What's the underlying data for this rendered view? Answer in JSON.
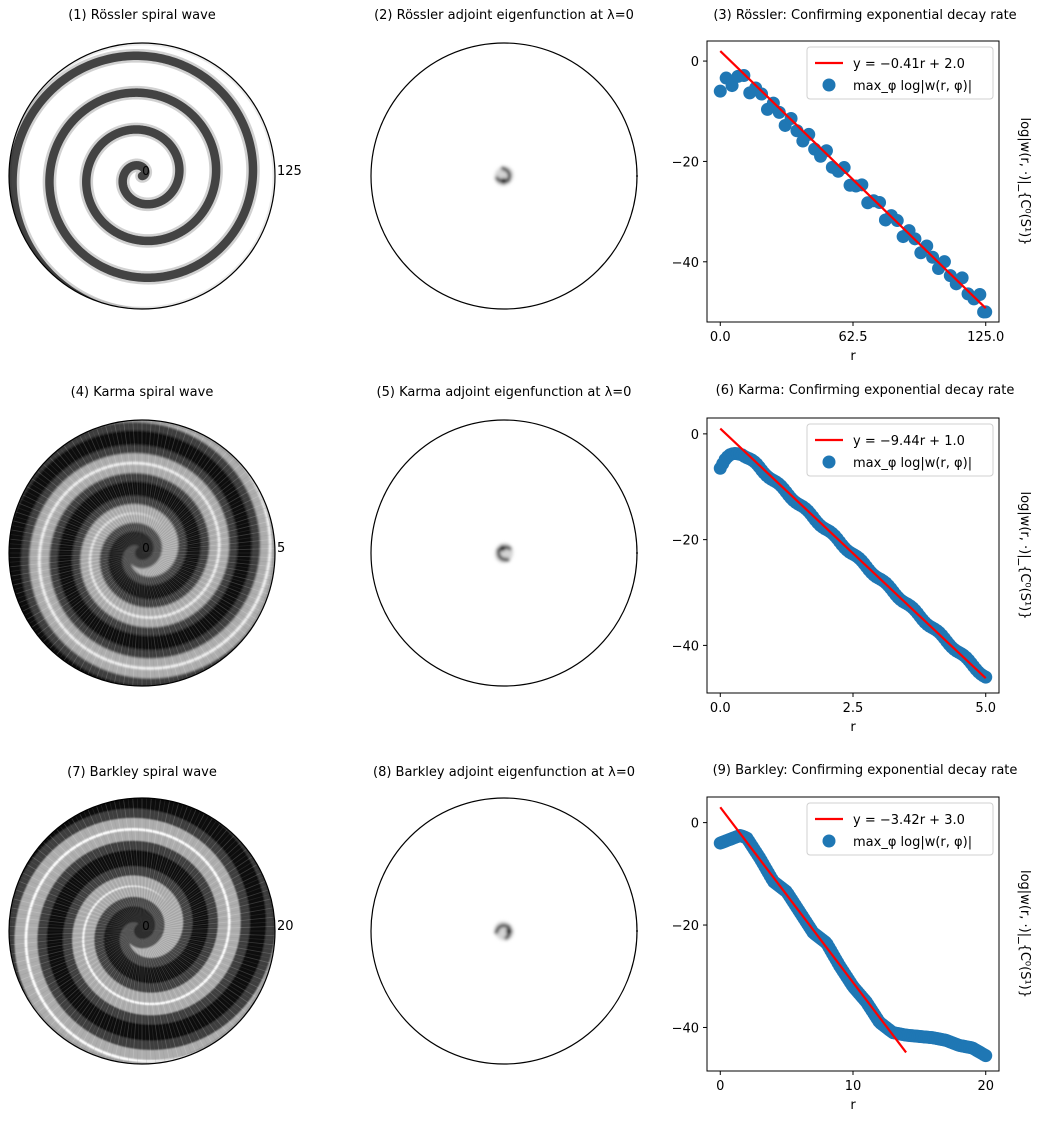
{
  "colors": {
    "scatter": "#1f77b4",
    "fit_line": "#ff0000",
    "axis": "#000000"
  },
  "polar_panels": [
    {
      "title": "(1) Rössler spiral wave",
      "kind": "spiral",
      "center_label": "0",
      "radius_label": "125",
      "turns": 3.6,
      "thickness": 0.23,
      "blur": 0.35,
      "dense": false
    },
    {
      "title": "(2) Rössler adjoint eigenfunction at λ=0",
      "kind": "blob",
      "angle": 40
    },
    {
      "title": "(4) Karma spiral wave",
      "kind": "spiral",
      "center_label": "0",
      "radius_label": "5",
      "turns": 2.6,
      "thickness": 0.5,
      "blur": 1.0,
      "dense": true
    },
    {
      "title": "(5) Karma adjoint eigenfunction at λ=0",
      "kind": "blob",
      "angle": 200
    },
    {
      "title": "(7) Barkley spiral wave",
      "kind": "spiral",
      "center_label": "0",
      "radius_label": "20",
      "turns": 2.3,
      "thickness": 0.5,
      "blur": 0.7,
      "dense": true
    },
    {
      "title": "(8) Barkley adjoint eigenfunction at λ=0",
      "kind": "blob",
      "angle": 310
    }
  ],
  "chart_data": [
    {
      "type": "scatter",
      "title": "(3) Rössler: Confirming exponential decay rate",
      "xlabel": "r",
      "ylabel": "log|w(r, ·)|_{C⁰(S¹)}",
      "xlim": [
        -6.25,
        131.25
      ],
      "ylim": [
        -52,
        4
      ],
      "xticks": [
        0,
        62.5,
        125
      ],
      "xtick_labels": [
        "0.0",
        "62.5",
        "125.0"
      ],
      "yticks": [
        0,
        -20,
        -40
      ],
      "ytick_labels": [
        "0",
        "−20",
        "−40"
      ],
      "legend": {
        "line": "y = −0.41r + 2.0",
        "points": "max_φ log|w(r, φ)|",
        "position": "upper right"
      },
      "fit": {
        "slope": -0.41,
        "intercept": 2.0,
        "x_range": [
          0,
          125
        ]
      },
      "points": {
        "x_range": [
          0,
          125
        ],
        "count": 46,
        "knots": [
          [
            0,
            -6
          ],
          [
            2,
            -5
          ],
          [
            4,
            -3.8
          ],
          [
            6,
            -3.5
          ],
          [
            8,
            -3.4
          ],
          [
            10,
            -3.5
          ],
          [
            12,
            -4
          ],
          [
            14,
            -5
          ],
          [
            125,
            -49
          ]
        ],
        "osc": 1.4,
        "period": 8
      },
      "extra_points": [
        [
          124,
          -50
        ]
      ]
    },
    {
      "type": "scatter",
      "title": "(6) Karma: Confirming exponential decay rate",
      "xlabel": "r",
      "ylabel": "log|w(r, ·)|_{C⁰(S¹)}",
      "xlim": [
        -0.25,
        5.25
      ],
      "ylim": [
        -49,
        3
      ],
      "xticks": [
        0,
        2.5,
        5
      ],
      "xtick_labels": [
        "0.0",
        "2.5",
        "5.0"
      ],
      "yticks": [
        0,
        -20,
        -40
      ],
      "ytick_labels": [
        "0",
        "−20",
        "−40"
      ],
      "legend": {
        "line": "y = −9.44r + 1.0",
        "points": "max_φ log|w(r, φ)|",
        "position": "upper right"
      },
      "fit": {
        "slope": -9.44,
        "intercept": 1.0,
        "x_range": [
          0,
          5
        ]
      },
      "points": {
        "x_range": [
          0,
          5
        ],
        "count": 110,
        "knots": [
          [
            0,
            -6.5
          ],
          [
            0.1,
            -5
          ],
          [
            0.2,
            -4
          ],
          [
            0.3,
            -3.5
          ],
          [
            0.4,
            -3.6
          ],
          [
            0.5,
            -4.5
          ],
          [
            0.7,
            -6
          ],
          [
            5,
            -46
          ]
        ],
        "osc": 0.3,
        "period": 0.5
      },
      "extra_points": []
    },
    {
      "type": "scatter",
      "title": "(9) Barkley: Confirming exponential decay rate",
      "xlabel": "r",
      "ylabel": "log|w(r, ·)|_{C⁰(S¹)}",
      "xlim": [
        -1,
        21
      ],
      "ylim": [
        -48.5,
        5
      ],
      "xticks": [
        0,
        10,
        20
      ],
      "xtick_labels": [
        "0",
        "10",
        "20"
      ],
      "yticks": [
        0,
        -20,
        -40
      ],
      "ytick_labels": [
        "0",
        "−20",
        "−40"
      ],
      "legend": {
        "line": "y = −3.42r + 3.0",
        "points": "max_φ log|w(r, φ)|",
        "position": "upper right"
      },
      "fit": {
        "slope": -3.42,
        "intercept": 3.0,
        "x_range": [
          0,
          14
        ]
      },
      "points": {
        "x_range": [
          0,
          20
        ],
        "count": 150,
        "knots": [
          [
            0,
            -4
          ],
          [
            0.5,
            -3.5
          ],
          [
            1,
            -3
          ],
          [
            1.5,
            -2.5
          ],
          [
            2,
            -3
          ],
          [
            3,
            -7
          ],
          [
            4,
            -11.5
          ],
          [
            5,
            -13.5
          ],
          [
            6,
            -17.5
          ],
          [
            7,
            -21.5
          ],
          [
            8,
            -23.5
          ],
          [
            9,
            -28
          ],
          [
            10,
            -32
          ],
          [
            11,
            -35
          ],
          [
            12,
            -39
          ],
          [
            13,
            -41
          ],
          [
            14,
            -41.5
          ],
          [
            16,
            -42
          ],
          [
            17,
            -42.5
          ],
          [
            18,
            -43.5
          ],
          [
            19,
            -44
          ],
          [
            20,
            -45.5
          ]
        ],
        "osc": 0,
        "period": 1
      },
      "extra_points": []
    }
  ]
}
